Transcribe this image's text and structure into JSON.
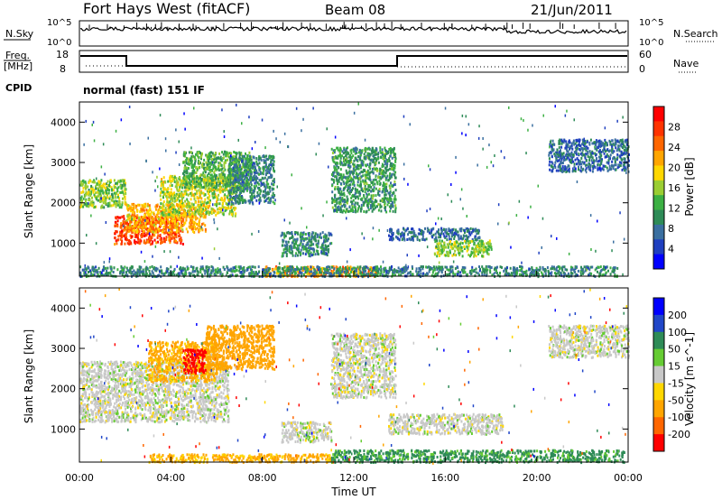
{
  "header": {
    "radar": "Fort Hays West (fitACF)",
    "beam": "Beam 08",
    "date": "21/Jun/2011"
  },
  "noise_panel": {
    "left_label": "N.Sky",
    "right_label": "N.Search",
    "left_ticks": [
      "10^5",
      "10^0"
    ],
    "right_ticks": [
      "10^5",
      "10^0"
    ]
  },
  "freq_panel": {
    "left_label_1": "Freq.",
    "left_label_2": "[MHz]",
    "right_label": "Nave",
    "left_ticks": [
      "18",
      "8"
    ],
    "right_ticks": [
      "60",
      "0"
    ],
    "cpid_label": "CPID",
    "cpid_text": "normal (fast) 151 IF"
  },
  "colors": {
    "power_scale": [
      "#0000ff",
      "#1f3fbf",
      "#3a6fa0",
      "#2e8b57",
      "#3cb043",
      "#9acd32",
      "#ffd700",
      "#ffa500",
      "#ff6600",
      "#ff3300",
      "#ff0000"
    ],
    "velocity_scale": [
      "#0000ff",
      "#2147c8",
      "#2e8b57",
      "#66cc33",
      "#c8c8c8",
      "#ffd700",
      "#ffa500",
      "#ff6600",
      "#ff0000"
    ],
    "ground_scatter": "#b4b4b4"
  },
  "chart_data": [
    {
      "type": "heatmap",
      "panel": "power",
      "ylabel": "Slant Range [km]",
      "yticks": [
        "1000",
        "2000",
        "3000",
        "4000"
      ],
      "colorbar_label": "Power [dB]",
      "colorbar_ticks": [
        "4",
        "8",
        "12",
        "16",
        "20",
        "24",
        "28"
      ],
      "x_range_hours": [
        0,
        24
      ],
      "y_range_km": [
        180,
        4500
      ],
      "regions": [
        {
          "t": [
            0.0,
            2.0
          ],
          "r": [
            1900,
            2600
          ],
          "v": 14
        },
        {
          "t": [
            1.5,
            4.5
          ],
          "r": [
            1000,
            1700
          ],
          "v": 26
        },
        {
          "t": [
            2.0,
            5.5
          ],
          "r": [
            1300,
            2000
          ],
          "v": 20
        },
        {
          "t": [
            3.5,
            6.8
          ],
          "r": [
            1700,
            2700
          ],
          "v": 16
        },
        {
          "t": [
            4.5,
            7.5
          ],
          "r": [
            2400,
            3300
          ],
          "v": 12
        },
        {
          "t": [
            6.5,
            8.5
          ],
          "r": [
            2000,
            3200
          ],
          "v": 8
        },
        {
          "t": [
            8.8,
            11.0
          ],
          "r": [
            700,
            1300
          ],
          "v": 8
        },
        {
          "t": [
            11.0,
            13.8
          ],
          "r": [
            1800,
            3400
          ],
          "v": 10
        },
        {
          "t": [
            13.5,
            17.5
          ],
          "r": [
            1100,
            1400
          ],
          "v": 6
        },
        {
          "t": [
            15.5,
            18.0
          ],
          "r": [
            700,
            1100
          ],
          "v": 14
        },
        {
          "t": [
            8.0,
            13.0
          ],
          "r": [
            200,
            450
          ],
          "v": 22
        },
        {
          "t": [
            0.0,
            23.5
          ],
          "r": [
            200,
            450
          ],
          "v": 8
        },
        {
          "t": [
            20.5,
            24.0
          ],
          "r": [
            2800,
            3600
          ],
          "v": 6
        }
      ]
    },
    {
      "type": "heatmap",
      "panel": "velocity",
      "ylabel": "Slant Range [km]",
      "yticks": [
        "1000",
        "2000",
        "3000",
        "4000"
      ],
      "colorbar_label": "Velocity [m s^-1]",
      "colorbar_ticks": [
        "200",
        "100",
        "50",
        "15",
        "-15",
        "-50",
        "-100",
        "-200"
      ],
      "x_range_hours": [
        0,
        24
      ],
      "y_range_km": [
        180,
        4500
      ],
      "xlabel": "Time UT",
      "xticks": [
        "00:00",
        "04:00",
        "08:00",
        "12:00",
        "16:00",
        "20:00",
        "00:00"
      ],
      "regions": [
        {
          "t": [
            0.0,
            6.5
          ],
          "r": [
            1200,
            2700
          ],
          "v": 0
        },
        {
          "t": [
            3.0,
            6.0
          ],
          "r": [
            2200,
            3200
          ],
          "v": -60
        },
        {
          "t": [
            5.5,
            8.5
          ],
          "r": [
            2500,
            3600
          ],
          "v": -80
        },
        {
          "t": [
            4.5,
            5.5
          ],
          "r": [
            2400,
            3000
          ],
          "v": -200
        },
        {
          "t": [
            8.8,
            11.0
          ],
          "r": [
            700,
            1200
          ],
          "v": 0
        },
        {
          "t": [
            11.0,
            13.8
          ],
          "r": [
            1800,
            3400
          ],
          "v": 0
        },
        {
          "t": [
            13.5,
            18.5
          ],
          "r": [
            900,
            1400
          ],
          "v": 0
        },
        {
          "t": [
            3.0,
            11.0
          ],
          "r": [
            200,
            400
          ],
          "v": -60
        },
        {
          "t": [
            11.0,
            23.8
          ],
          "r": [
            200,
            500
          ],
          "v": 40
        },
        {
          "t": [
            20.5,
            24.0
          ],
          "r": [
            2800,
            3600
          ],
          "v": 0
        }
      ]
    }
  ]
}
